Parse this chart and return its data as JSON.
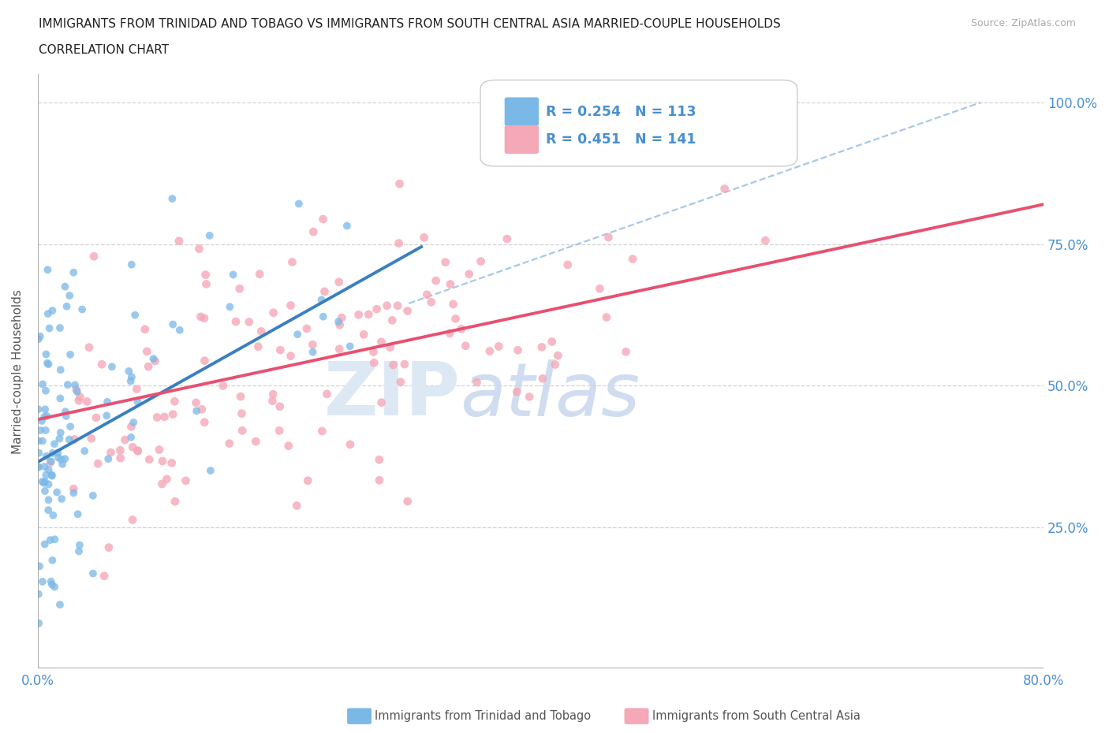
{
  "title_line1": "IMMIGRANTS FROM TRINIDAD AND TOBAGO VS IMMIGRANTS FROM SOUTH CENTRAL ASIA MARRIED-COUPLE HOUSEHOLDS",
  "title_line2": "CORRELATION CHART",
  "source_text": "Source: ZipAtlas.com",
  "ylabel": "Married-couple Households",
  "xlim": [
    0.0,
    0.8
  ],
  "ylim": [
    0.0,
    1.05
  ],
  "x_ticks": [
    0.0,
    0.1,
    0.2,
    0.3,
    0.4,
    0.5,
    0.6,
    0.7,
    0.8
  ],
  "x_tick_labels": [
    "0.0%",
    "",
    "",
    "",
    "",
    "",
    "",
    "",
    "80.0%"
  ],
  "y_ticks": [
    0.25,
    0.5,
    0.75,
    1.0
  ],
  "y_tick_labels": [
    "25.0%",
    "50.0%",
    "75.0%",
    "100.0%"
  ],
  "color_blue": "#7ab8e8",
  "color_pink": "#f5a8b8",
  "color_blue_line": "#3a7fc1",
  "color_pink_line": "#e85070",
  "color_dashed": "#a8c8e8",
  "color_grid": "#c8c8c8",
  "color_title": "#222222",
  "color_axis_label": "#555555",
  "color_tick_blue": "#4a8fd0",
  "color_source": "#aaaaaa",
  "watermark_color": "#dde8f5",
  "R_blue": 0.254,
  "N_blue": 113,
  "R_pink": 0.451,
  "N_pink": 141,
  "legend_label_blue": "Immigrants from Trinidad and Tobago",
  "legend_label_pink": "Immigrants from South Central Asia",
  "blue_line_x": [
    0.0,
    0.305
  ],
  "blue_line_y": [
    0.365,
    0.745
  ],
  "pink_line_x": [
    0.0,
    0.8
  ],
  "pink_line_y": [
    0.44,
    0.82
  ],
  "dashed_line_x": [
    0.295,
    0.75
  ],
  "dashed_line_y": [
    0.645,
    1.0
  ]
}
